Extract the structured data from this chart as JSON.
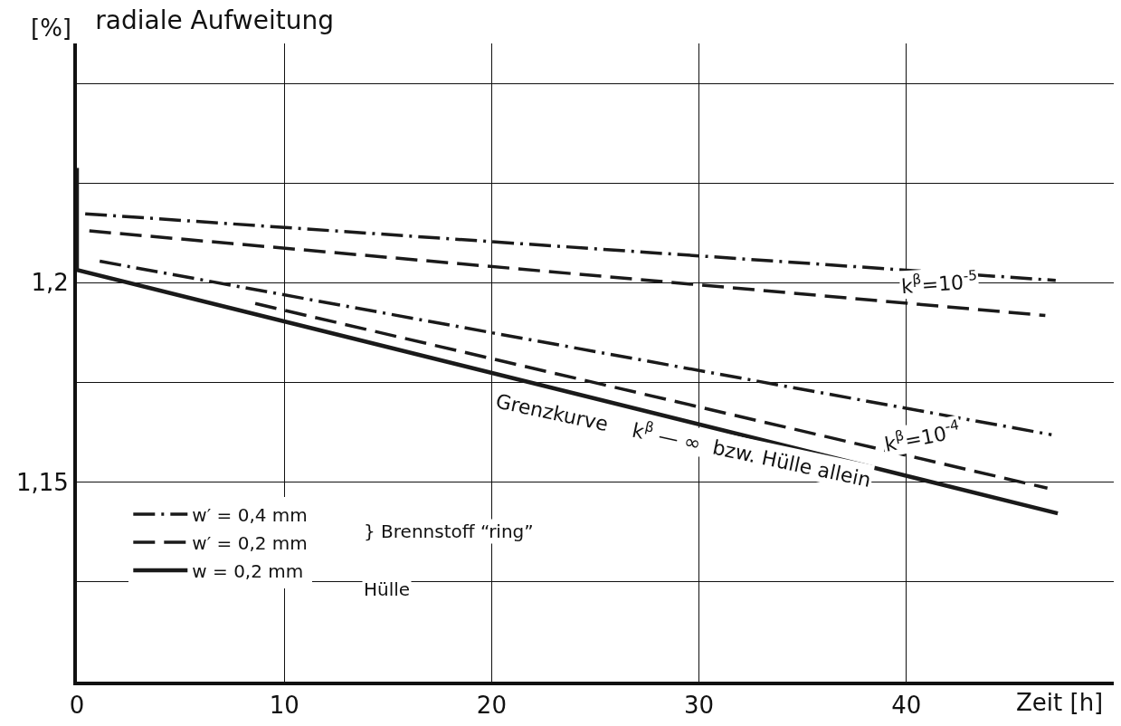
{
  "chart_data": {
    "type": "line",
    "title": "radiale Aufweitung",
    "ylabel": "[%]",
    "xlabel": "Zeit [h]",
    "xlim": [
      0,
      50
    ],
    "xticks": [
      0,
      10,
      20,
      30,
      40
    ],
    "ylim": [
      1.1,
      1.26
    ],
    "yticks": [
      {
        "value": 1.125,
        "label": null
      },
      {
        "value": 1.15,
        "label": "1,15"
      },
      {
        "value": 1.175,
        "label": null
      },
      {
        "value": 1.2,
        "label": "1,2"
      },
      {
        "value": 1.225,
        "label": null
      },
      {
        "value": 1.25,
        "label": null
      }
    ],
    "grid": true,
    "legend": "bottom left",
    "marker": "none",
    "series": [
      {
        "name": "w′ = 0,4 mm",
        "color": "#1a1a1a",
        "line_style": "dashdot",
        "x": [
          0.4,
          47.2
        ],
        "values": [
          1.2173,
          1.2006
        ]
      },
      {
        "name": "w′ = 0,2 mm",
        "color": "#1a1a1a",
        "line_style": "dashed",
        "x": [
          0.6,
          46.7
        ],
        "values": [
          1.213,
          1.1918
        ]
      },
      {
        "color": "#1a1a1a",
        "line_style": "dashdot",
        "x": [
          1.1,
          47.0
        ],
        "values": [
          1.2054,
          1.1619
        ]
      },
      {
        "color": "#1a1a1a",
        "line_style": "dashed",
        "x": [
          8.6,
          46.8
        ],
        "values": [
          1.1948,
          1.1485
        ]
      },
      {
        "name": "w = 0,2 mm",
        "color": "#1a1a1a",
        "line_style": "solid",
        "x": [
          0,
          0,
          47.3
        ],
        "values": [
          1.2288,
          1.2032,
          1.1422
        ]
      }
    ],
    "annotations": [
      "k$^{β}$=10$^{-5}$",
      "k$^{β}$=10$^{-4}$",
      "Grenzkurve    k$^{β}$ — ∞  bzw. Hülle allein",
      "} Brennstoff “ring”",
      "Hülle"
    ]
  }
}
